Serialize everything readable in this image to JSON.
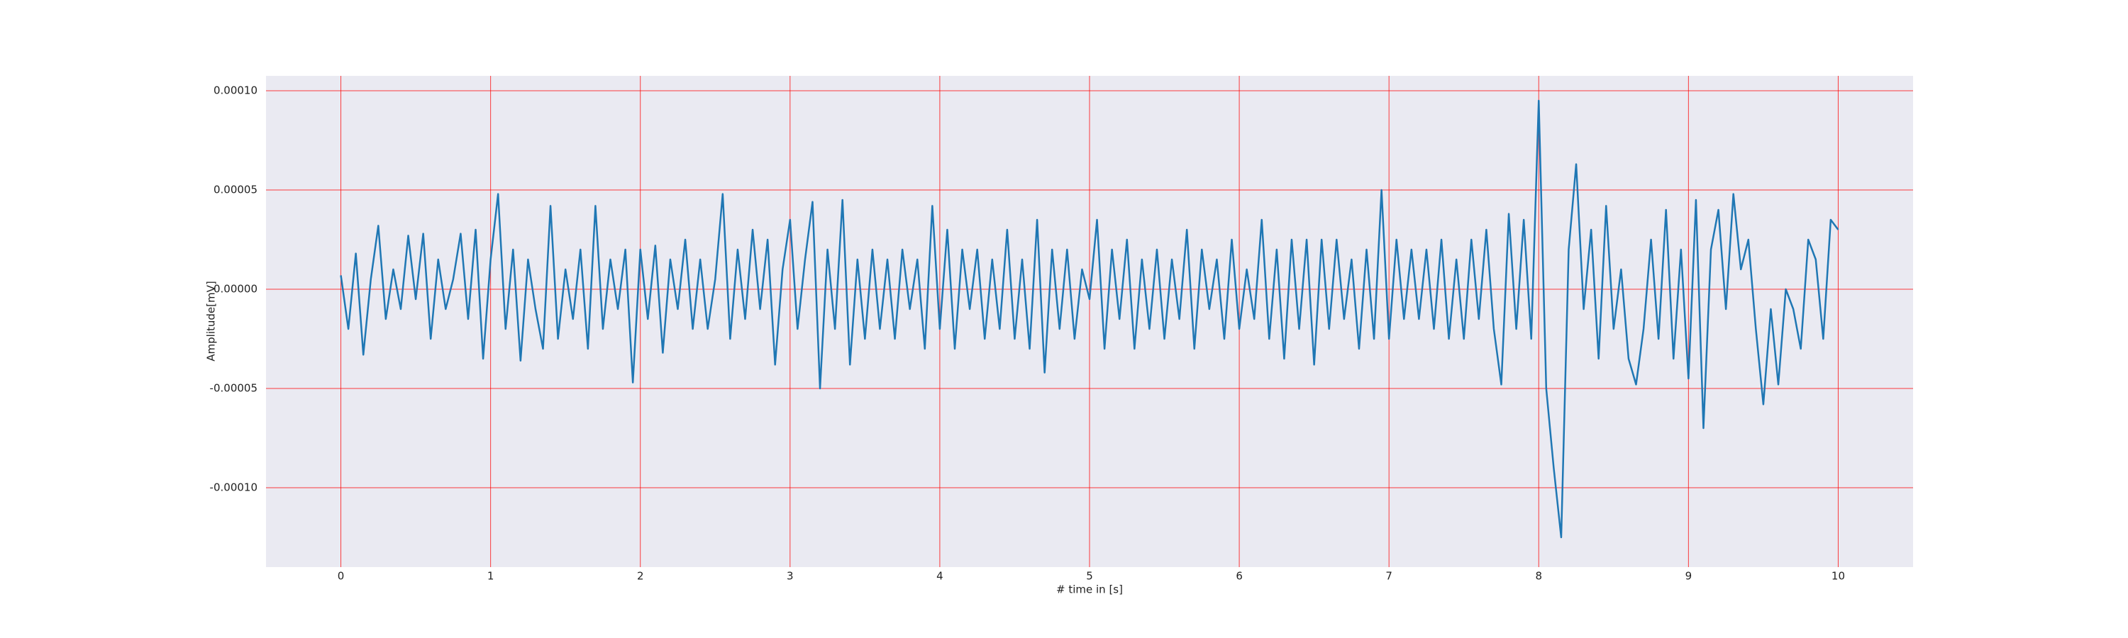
{
  "chart_data": {
    "type": "line",
    "xlabel": "# time in [s]",
    "ylabel": "Amplitude[mV]",
    "color": "#1f77b4",
    "grid": true,
    "grid_color": "#ff0000",
    "background": "#eaeaf2",
    "xlim": [
      -0.5,
      10.5
    ],
    "xticks": [
      0,
      1,
      2,
      3,
      4,
      5,
      6,
      7,
      8,
      9,
      10
    ],
    "ylim": [
      -0.00014,
      0.0001075
    ],
    "yticks": [
      {
        "value": -0.0001,
        "label": "-0.00010"
      },
      {
        "value": -5e-05,
        "label": "-0.00005"
      },
      {
        "value": 0,
        "label": "0.00000"
      },
      {
        "value": 5e-05,
        "label": "0.00005"
      },
      {
        "value": 0.0001,
        "label": "0.00010"
      }
    ],
    "x": [
      0,
      0.05,
      0.1,
      0.15,
      0.2,
      0.25,
      0.3,
      0.35,
      0.4,
      0.45,
      0.5,
      0.55,
      0.6,
      0.65,
      0.7,
      0.75,
      0.8,
      0.85,
      0.9,
      0.95,
      1,
      1.05,
      1.1,
      1.15,
      1.2,
      1.25,
      1.3,
      1.35,
      1.4,
      1.45,
      1.5,
      1.55,
      1.6,
      1.65,
      1.7,
      1.75,
      1.8,
      1.85,
      1.9,
      1.95,
      2,
      2.05,
      2.1,
      2.15,
      2.2,
      2.25,
      2.3,
      2.35,
      2.4,
      2.45,
      2.5,
      2.55,
      2.6,
      2.65,
      2.7,
      2.75,
      2.8,
      2.85,
      2.9,
      2.95,
      3,
      3.05,
      3.1,
      3.15,
      3.2,
      3.25,
      3.3,
      3.35,
      3.4,
      3.45,
      3.5,
      3.55,
      3.6,
      3.65,
      3.7,
      3.75,
      3.8,
      3.85,
      3.9,
      3.95,
      4,
      4.05,
      4.1,
      4.15,
      4.2,
      4.25,
      4.3,
      4.35,
      4.4,
      4.45,
      4.5,
      4.55,
      4.6,
      4.65,
      4.7,
      4.75,
      4.8,
      4.85,
      4.9,
      4.95,
      5,
      5.05,
      5.1,
      5.15,
      5.2,
      5.25,
      5.3,
      5.35,
      5.4,
      5.45,
      5.5,
      5.55,
      5.6,
      5.65,
      5.7,
      5.75,
      5.8,
      5.85,
      5.9,
      5.95,
      6,
      6.05,
      6.1,
      6.15,
      6.2,
      6.25,
      6.3,
      6.35,
      6.4,
      6.45,
      6.5,
      6.55,
      6.6,
      6.65,
      6.7,
      6.75,
      6.8,
      6.85,
      6.9,
      6.95,
      7,
      7.05,
      7.1,
      7.15,
      7.2,
      7.25,
      7.3,
      7.35,
      7.4,
      7.45,
      7.5,
      7.55,
      7.6,
      7.65,
      7.7,
      7.75,
      7.8,
      7.85,
      7.9,
      7.95,
      8,
      8.05,
      8.1,
      8.15,
      8.2,
      8.25,
      8.3,
      8.35,
      8.4,
      8.45,
      8.5,
      8.55,
      8.6,
      8.65,
      8.7,
      8.75,
      8.8,
      8.85,
      8.9,
      8.95,
      9,
      9.05,
      9.1,
      9.15,
      9.2,
      9.25,
      9.3,
      9.35,
      9.4,
      9.45,
      9.5,
      9.55,
      9.6,
      9.65,
      9.7,
      9.75,
      9.8,
      9.85,
      9.9,
      9.95,
      10
    ],
    "values": [
      7e-06,
      -2e-05,
      1.8e-05,
      -3.3e-05,
      5e-06,
      3.2e-05,
      -1.5e-05,
      1e-05,
      -1e-05,
      2.7e-05,
      -5e-06,
      2.8e-05,
      -2.5e-05,
      1.5e-05,
      -1e-05,
      5e-06,
      2.8e-05,
      -1.5e-05,
      3e-05,
      -3.5e-05,
      1.5e-05,
      4.8e-05,
      -2e-05,
      2e-05,
      -3.6e-05,
      1.5e-05,
      -1e-05,
      -3e-05,
      4.2e-05,
      -2.5e-05,
      1e-05,
      -1.5e-05,
      2e-05,
      -3e-05,
      4.2e-05,
      -2e-05,
      1.5e-05,
      -1e-05,
      2e-05,
      -4.7e-05,
      2e-05,
      -1.5e-05,
      2.2e-05,
      -3.2e-05,
      1.5e-05,
      -1e-05,
      2.5e-05,
      -2e-05,
      1.5e-05,
      -2e-05,
      5e-06,
      4.8e-05,
      -2.5e-05,
      2e-05,
      -1.5e-05,
      3e-05,
      -1e-05,
      2.5e-05,
      -3.8e-05,
      1e-05,
      3.5e-05,
      -2e-05,
      1.5e-05,
      4.4e-05,
      -5e-05,
      2e-05,
      -2e-05,
      4.5e-05,
      -3.8e-05,
      1.5e-05,
      -2.5e-05,
      2e-05,
      -2e-05,
      1.5e-05,
      -2.5e-05,
      2e-05,
      -1e-05,
      1.5e-05,
      -3e-05,
      4.2e-05,
      -2e-05,
      3e-05,
      -3e-05,
      2e-05,
      -1e-05,
      2e-05,
      -2.5e-05,
      1.5e-05,
      -2e-05,
      3e-05,
      -2.5e-05,
      1.5e-05,
      -3e-05,
      3.5e-05,
      -4.2e-05,
      2e-05,
      -2e-05,
      2e-05,
      -2.5e-05,
      1e-05,
      -5e-06,
      3.5e-05,
      -3e-05,
      2e-05,
      -1.5e-05,
      2.5e-05,
      -3e-05,
      1.5e-05,
      -2e-05,
      2e-05,
      -2.5e-05,
      1.5e-05,
      -1.5e-05,
      3e-05,
      -3e-05,
      2e-05,
      -1e-05,
      1.5e-05,
      -2.5e-05,
      2.5e-05,
      -2e-05,
      1e-05,
      -1.5e-05,
      3.5e-05,
      -2.5e-05,
      2e-05,
      -3.5e-05,
      2.5e-05,
      -2e-05,
      2.5e-05,
      -3.8e-05,
      2.5e-05,
      -2e-05,
      2.5e-05,
      -1.5e-05,
      1.5e-05,
      -3e-05,
      2e-05,
      -2.5e-05,
      5e-05,
      -2.5e-05,
      2.5e-05,
      -1.5e-05,
      2e-05,
      -1.5e-05,
      2e-05,
      -2e-05,
      2.5e-05,
      -2.5e-05,
      1.5e-05,
      -2.5e-05,
      2.5e-05,
      -1.5e-05,
      3e-05,
      -2e-05,
      -4.8e-05,
      3.8e-05,
      -2e-05,
      3.5e-05,
      -2.5e-05,
      9.5e-05,
      -5e-05,
      -9e-05,
      -0.000125,
      2e-05,
      6.3e-05,
      -1e-05,
      3e-05,
      -3.5e-05,
      4.2e-05,
      -2e-05,
      1e-05,
      -3.5e-05,
      -4.8e-05,
      -2e-05,
      2.5e-05,
      -2.5e-05,
      4e-05,
      -3.5e-05,
      2e-05,
      -4.5e-05,
      4.5e-05,
      -7e-05,
      2e-05,
      4e-05,
      -1e-05,
      4.8e-05,
      1e-05,
      2.5e-05,
      -2e-05,
      -5.8e-05,
      -1e-05,
      -4.8e-05,
      0,
      -1e-05,
      -3e-05,
      2.5e-05,
      1.5e-05,
      -2.5e-05,
      3.5e-05,
      3e-05
    ]
  }
}
